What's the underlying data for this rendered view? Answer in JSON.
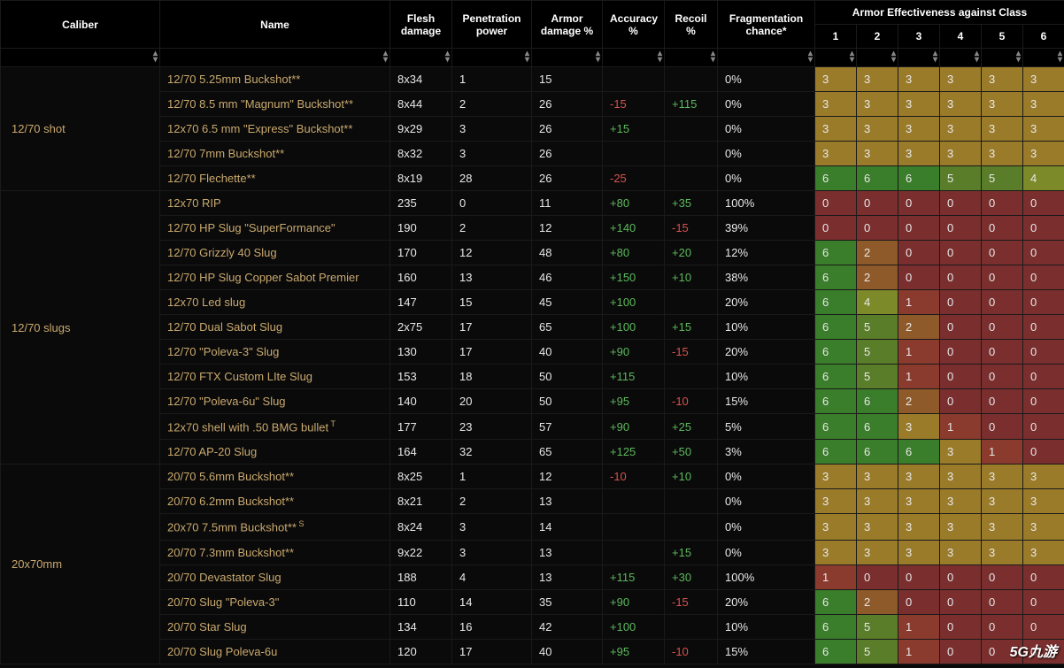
{
  "headers": {
    "super": "Armor Effectiveness against Class",
    "cols": [
      "Caliber",
      "Name",
      "Flesh damage",
      "Penetration power",
      "Armor damage %",
      "Accuracy %",
      "Recoil %",
      "Fragmentation chance*",
      "1",
      "2",
      "3",
      "4",
      "5",
      "6"
    ]
  },
  "widths": [
    180,
    260,
    70,
    90,
    80,
    70,
    60,
    110,
    47,
    47,
    47,
    47,
    47,
    47
  ],
  "watermark": "5G九游",
  "armorColorMap": {
    "0": "c0",
    "1": "c1",
    "2": "c2",
    "3": "c3",
    "4": "c4",
    "5": "c5",
    "6": "c6"
  },
  "groups": [
    {
      "caliber": "12/70 shot",
      "rows": [
        {
          "name": "12/70 5.25mm Buckshot**",
          "flesh": "8x34",
          "pen": "1",
          "armor": "15",
          "acc": "",
          "rec": "",
          "frag": "0%",
          "ae": [
            3,
            3,
            3,
            3,
            3,
            3
          ]
        },
        {
          "name": "12/70 8.5 mm \"Magnum\" Buckshot**",
          "flesh": "8x44",
          "pen": "2",
          "armor": "26",
          "acc": "-15",
          "rec": "+115",
          "frag": "0%",
          "ae": [
            3,
            3,
            3,
            3,
            3,
            3
          ]
        },
        {
          "name": "12x70 6.5 mm \"Express\" Buckshot**",
          "flesh": "9x29",
          "pen": "3",
          "armor": "26",
          "acc": "+15",
          "rec": "",
          "frag": "0%",
          "ae": [
            3,
            3,
            3,
            3,
            3,
            3
          ]
        },
        {
          "name": "12/70 7mm Buckshot**",
          "flesh": "8x32",
          "pen": "3",
          "armor": "26",
          "acc": "",
          "rec": "",
          "frag": "0%",
          "ae": [
            3,
            3,
            3,
            3,
            3,
            3
          ]
        },
        {
          "name": "12/70 Flechette**",
          "flesh": "8x19",
          "pen": "28",
          "armor": "26",
          "acc": "-25",
          "rec": "",
          "frag": "0%",
          "ae": [
            6,
            6,
            6,
            5,
            5,
            4
          ]
        }
      ]
    },
    {
      "caliber": "12/70 slugs",
      "rows": [
        {
          "name": "12x70 RIP",
          "flesh": "235",
          "pen": "0",
          "armor": "11",
          "acc": "+80",
          "rec": "+35",
          "frag": "100%",
          "ae": [
            0,
            0,
            0,
            0,
            0,
            0
          ]
        },
        {
          "name": "12/70 HP Slug \"SuperFormance\"",
          "flesh": "190",
          "pen": "2",
          "armor": "12",
          "acc": "+140",
          "rec": "-15",
          "frag": "39%",
          "ae": [
            0,
            0,
            0,
            0,
            0,
            0
          ]
        },
        {
          "name": "12/70 Grizzly 40 Slug",
          "flesh": "170",
          "pen": "12",
          "armor": "48",
          "acc": "+80",
          "rec": "+20",
          "frag": "12%",
          "ae": [
            6,
            2,
            0,
            0,
            0,
            0
          ]
        },
        {
          "name": "12/70 HP Slug Copper Sabot Premier",
          "flesh": "160",
          "pen": "13",
          "armor": "46",
          "acc": "+150",
          "rec": "+10",
          "frag": "38%",
          "ae": [
            6,
            2,
            0,
            0,
            0,
            0
          ]
        },
        {
          "name": "12x70 Led slug",
          "flesh": "147",
          "pen": "15",
          "armor": "45",
          "acc": "+100",
          "rec": "",
          "frag": "20%",
          "ae": [
            6,
            4,
            1,
            0,
            0,
            0
          ]
        },
        {
          "name": "12/70 Dual Sabot Slug",
          "flesh": "2x75",
          "pen": "17",
          "armor": "65",
          "acc": "+100",
          "rec": "+15",
          "frag": "10%",
          "ae": [
            6,
            5,
            2,
            0,
            0,
            0
          ]
        },
        {
          "name": "12/70 \"Poleva-3\" Slug",
          "flesh": "130",
          "pen": "17",
          "armor": "40",
          "acc": "+90",
          "rec": "-15",
          "frag": "20%",
          "ae": [
            6,
            5,
            1,
            0,
            0,
            0
          ]
        },
        {
          "name": "12/70 FTX Custom LIte Slug",
          "flesh": "153",
          "pen": "18",
          "armor": "50",
          "acc": "+115",
          "rec": "",
          "frag": "10%",
          "ae": [
            6,
            5,
            1,
            0,
            0,
            0
          ]
        },
        {
          "name": "12/70 \"Poleva-6u\" Slug",
          "flesh": "140",
          "pen": "20",
          "armor": "50",
          "acc": "+95",
          "rec": "-10",
          "frag": "15%",
          "ae": [
            6,
            6,
            2,
            0,
            0,
            0
          ]
        },
        {
          "name": "12x70 shell with .50 BMG bullet",
          "sup": "T",
          "flesh": "177",
          "pen": "23",
          "armor": "57",
          "acc": "+90",
          "rec": "+25",
          "frag": "5%",
          "ae": [
            6,
            6,
            3,
            1,
            0,
            0
          ]
        },
        {
          "name": "12/70 AP-20 Slug",
          "flesh": "164",
          "pen": "32",
          "armor": "65",
          "acc": "+125",
          "rec": "+50",
          "frag": "3%",
          "ae": [
            6,
            6,
            6,
            3,
            1,
            0
          ]
        }
      ]
    },
    {
      "caliber": "20x70mm",
      "rows": [
        {
          "name": "20/70 5.6mm Buckshot**",
          "flesh": "8x25",
          "pen": "1",
          "armor": "12",
          "acc": "-10",
          "rec": "+10",
          "frag": "0%",
          "ae": [
            3,
            3,
            3,
            3,
            3,
            3
          ]
        },
        {
          "name": "20/70 6.2mm Buckshot**",
          "flesh": "8x21",
          "pen": "2",
          "armor": "13",
          "acc": "",
          "rec": "",
          "frag": "0%",
          "ae": [
            3,
            3,
            3,
            3,
            3,
            3
          ]
        },
        {
          "name": "20x70 7.5mm Buckshot**",
          "sup": "S",
          "flesh": "8x24",
          "pen": "3",
          "armor": "14",
          "acc": "",
          "rec": "",
          "frag": "0%",
          "ae": [
            3,
            3,
            3,
            3,
            3,
            3
          ]
        },
        {
          "name": "20/70 7.3mm Buckshot**",
          "flesh": "9x22",
          "pen": "3",
          "armor": "13",
          "acc": "",
          "rec": "+15",
          "frag": "0%",
          "ae": [
            3,
            3,
            3,
            3,
            3,
            3
          ]
        },
        {
          "name": "20/70 Devastator Slug",
          "flesh": "188",
          "pen": "4",
          "armor": "13",
          "acc": "+115",
          "rec": "+30",
          "frag": "100%",
          "ae": [
            1,
            0,
            0,
            0,
            0,
            0
          ]
        },
        {
          "name": "20/70 Slug \"Poleva-3\"",
          "flesh": "110",
          "pen": "14",
          "armor": "35",
          "acc": "+90",
          "rec": "-15",
          "frag": "20%",
          "ae": [
            6,
            2,
            0,
            0,
            0,
            0
          ]
        },
        {
          "name": "20/70 Star Slug",
          "flesh": "134",
          "pen": "16",
          "armor": "42",
          "acc": "+100",
          "rec": "",
          "frag": "10%",
          "ae": [
            6,
            5,
            1,
            0,
            0,
            0
          ]
        },
        {
          "name": "20/70 Slug Poleva-6u",
          "flesh": "120",
          "pen": "17",
          "armor": "40",
          "acc": "+95",
          "rec": "-10",
          "frag": "15%",
          "ae": [
            6,
            5,
            1,
            0,
            0,
            0
          ]
        }
      ]
    }
  ]
}
